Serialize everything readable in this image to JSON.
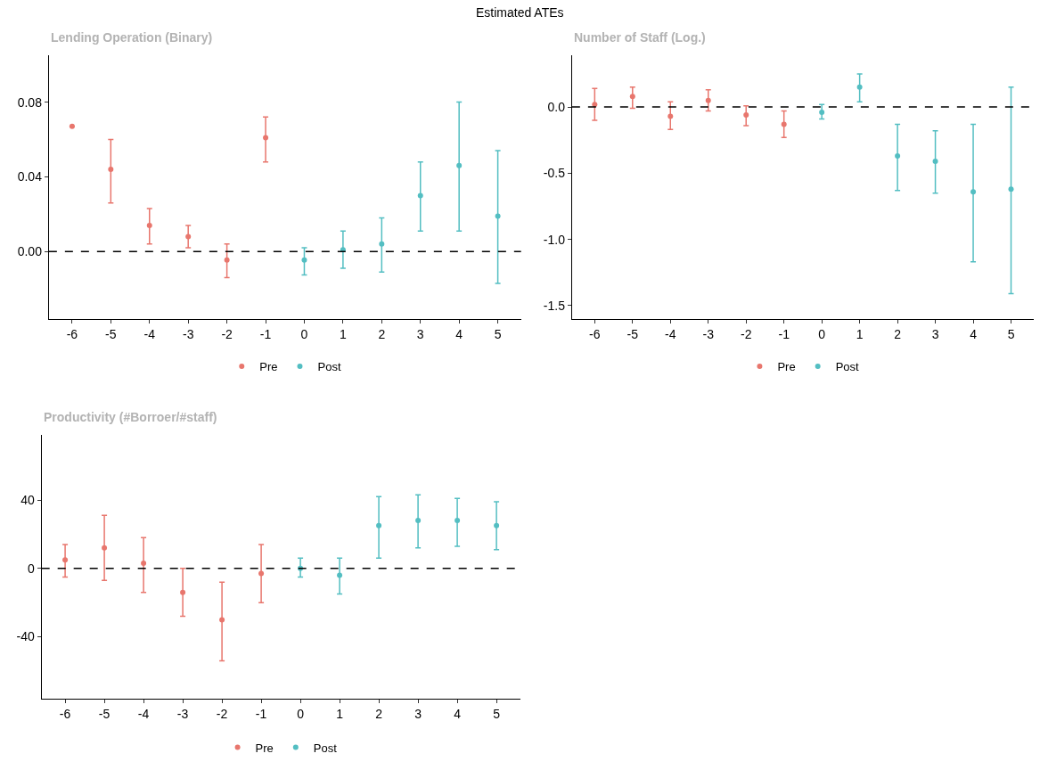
{
  "chart_data": [
    {
      "type": "scatter",
      "title": "Lending Operation (Binary)",
      "annotations": [
        "Estimated ATEs"
      ],
      "xlim": [
        -6.6,
        5.6
      ],
      "xticks": [
        -6,
        -5,
        -4,
        -3,
        -2,
        -1,
        0,
        1,
        2,
        3,
        4,
        5
      ],
      "ylim": [
        -0.036,
        0.105
      ],
      "yticks": [
        {
          "value": 0,
          "label": "0.00"
        },
        {
          "value": 0.04,
          "label": "0.04"
        },
        {
          "value": 0.08,
          "label": "0.08"
        }
      ],
      "legend": "bottom",
      "marker": "circle",
      "ref_lines": [
        {
          "axis": "y",
          "value": 0,
          "color": "#000000",
          "line_style": "dashed"
        }
      ],
      "series": [
        {
          "name": "Pre",
          "color": "#e8766d",
          "x": [
            -6,
            -5,
            -4,
            -3,
            -2,
            -1
          ],
          "values": [
            0.067,
            0.044,
            0.014,
            0.008,
            -0.0045,
            0.061
          ],
          "errors": [
            null,
            [
              0.026,
              0.06
            ],
            [
              0.004,
              0.023
            ],
            [
              0.002,
              0.014
            ],
            [
              -0.014,
              0.004
            ],
            [
              0.048,
              0.072
            ]
          ]
        },
        {
          "name": "Post",
          "color": "#53bec2",
          "x": [
            0,
            1,
            2,
            3,
            4,
            5
          ],
          "values": [
            -0.0045,
            0.001,
            0.004,
            0.03,
            0.046,
            0.019
          ],
          "errors": [
            [
              -0.0125,
              0.002
            ],
            [
              -0.009,
              0.011
            ],
            [
              -0.011,
              0.018
            ],
            [
              0.011,
              0.048
            ],
            [
              0.011,
              0.08
            ],
            [
              -0.017,
              0.054
            ]
          ]
        }
      ]
    },
    {
      "type": "scatter",
      "title": "Number of Staff (Log.)",
      "xlim": [
        -6.6,
        5.6
      ],
      "xticks": [
        -6,
        -5,
        -4,
        -3,
        -2,
        -1,
        0,
        1,
        2,
        3,
        4,
        5
      ],
      "ylim": [
        -1.6,
        0.39
      ],
      "yticks": [
        {
          "value": -1.5,
          "label": "-1.5"
        },
        {
          "value": -1.0,
          "label": "-1.0"
        },
        {
          "value": -0.5,
          "label": "-0.5"
        },
        {
          "value": 0.0,
          "label": "0.0"
        }
      ],
      "legend": "bottom",
      "marker": "circle",
      "ref_lines": [
        {
          "axis": "y",
          "value": 0,
          "color": "#000000",
          "line_style": "dashed"
        }
      ],
      "series": [
        {
          "name": "Pre",
          "color": "#e8766d",
          "x": [
            -6,
            -5,
            -4,
            -3,
            -2,
            -1
          ],
          "values": [
            0.02,
            0.08,
            -0.07,
            0.05,
            -0.06,
            -0.13
          ],
          "errors": [
            [
              -0.1,
              0.14
            ],
            [
              -0.01,
              0.15
            ],
            [
              -0.17,
              0.04
            ],
            [
              -0.03,
              0.13
            ],
            [
              -0.14,
              0.01
            ],
            [
              -0.23,
              -0.03
            ]
          ]
        },
        {
          "name": "Post",
          "color": "#53bec2",
          "x": [
            0,
            1,
            2,
            3,
            4,
            5
          ],
          "values": [
            -0.04,
            0.15,
            -0.37,
            -0.41,
            -0.64,
            -0.62
          ],
          "errors": [
            [
              -0.09,
              0.02
            ],
            [
              0.04,
              0.25
            ],
            [
              -0.63,
              -0.13
            ],
            [
              -0.65,
              -0.18
            ],
            [
              -1.17,
              -0.13
            ],
            [
              -1.41,
              0.15
            ]
          ]
        }
      ]
    },
    {
      "type": "scatter",
      "title": "Productivity (#Borroer/#staff)",
      "xlim": [
        -6.6,
        5.6
      ],
      "xticks": [
        -6,
        -5,
        -4,
        -3,
        -2,
        -1,
        0,
        1,
        2,
        3,
        4,
        5
      ],
      "ylim": [
        -76,
        78
      ],
      "yticks": [
        -40,
        0,
        40
      ],
      "legend": "bottom",
      "marker": "circle",
      "ref_lines": [
        {
          "axis": "y",
          "value": 0,
          "color": "#000000",
          "line_style": "dashed"
        }
      ],
      "series": [
        {
          "name": "Pre",
          "color": "#e8766d",
          "x": [
            -6,
            -5,
            -4,
            -3,
            -2,
            -1
          ],
          "values": [
            5,
            12,
            3,
            -14,
            -30,
            -3
          ],
          "errors": [
            [
              -5,
              14
            ],
            [
              -7,
              31
            ],
            [
              -14,
              18
            ],
            [
              -28,
              0
            ],
            [
              -54,
              -8
            ],
            [
              -20,
              14
            ]
          ]
        },
        {
          "name": "Post",
          "color": "#53bec2",
          "x": [
            0,
            1,
            2,
            3,
            4,
            5
          ],
          "values": [
            0,
            -4,
            25,
            28,
            28,
            25
          ],
          "errors": [
            [
              -5,
              6
            ],
            [
              -15,
              6
            ],
            [
              6,
              42
            ],
            [
              12,
              43
            ],
            [
              13,
              41
            ],
            [
              11,
              39
            ]
          ]
        }
      ]
    }
  ]
}
